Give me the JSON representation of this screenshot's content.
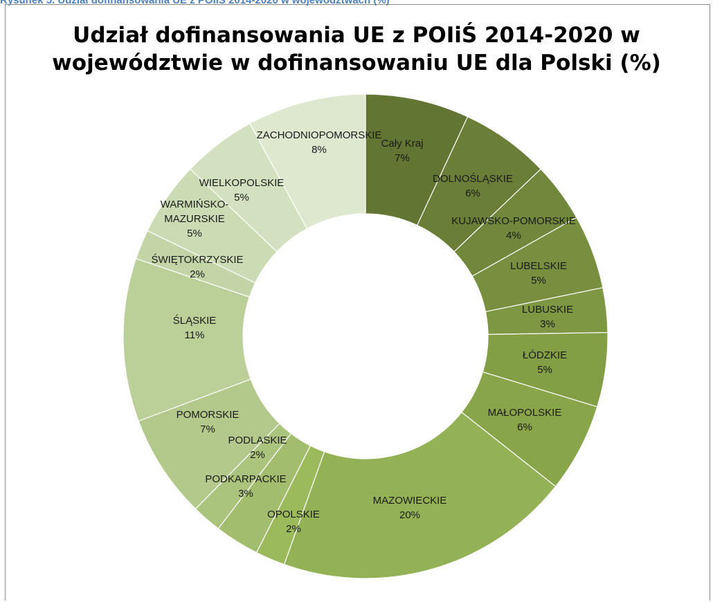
{
  "caption": "Rysunek 5. Udział dofinansowania UE z POIiŚ 2014-2020 w województwach (%)",
  "chart_data": {
    "type": "pie",
    "subtype": "donut",
    "title_line1": "Udział dofinansowania UE z POIiŚ 2014-2020 w",
    "title_line2": "województwie  w dofinansowaniu UE dla Polski (%)",
    "series": [
      {
        "label": "Cały Kraj",
        "value": 7,
        "color": "#637533"
      },
      {
        "label": "DOLNOŚLĄSKIE",
        "value": 6,
        "color": "#6a7e37"
      },
      {
        "label": "KUJAWSKO-POMORSKIE",
        "value": 4,
        "color": "#71873b"
      },
      {
        "label": "LUBELSKIE",
        "value": 5,
        "color": "#778f3f"
      },
      {
        "label": "LUBUSKIE",
        "value": 3,
        "color": "#7d9742"
      },
      {
        "label": "ŁÓDZKIE",
        "value": 5,
        "color": "#829f46"
      },
      {
        "label": "MAŁOPOLSKIE",
        "value": 6,
        "color": "#88a649"
      },
      {
        "label": "MAZOWIECKIE",
        "value": 20,
        "color": "#93b256"
      },
      {
        "label": "OPOLSKIE",
        "value": 2,
        "color": "#9bba5b"
      },
      {
        "label": "PODKARPACKIE",
        "value": 3,
        "color": "#a3bd6e"
      },
      {
        "label": "PODLASKIE",
        "value": 2,
        "color": "#abc47d"
      },
      {
        "label": "POMORSKIE",
        "value": 7,
        "color": "#b3c98b"
      },
      {
        "label": "ŚLĄSKIE",
        "value": 11,
        "color": "#bbcf99"
      },
      {
        "label": "ŚWIĘTOKRZYSKIE",
        "value": 2,
        "color": "#c3d5a6"
      },
      {
        "label": "WARMIŃSKO-MAZURSKIE",
        "value": 5,
        "color": "#cbdbb3"
      },
      {
        "label": "WIELKOPOLSKIE",
        "value": 5,
        "color": "#d3e1c0"
      },
      {
        "label": "ZACHODNIOPOMORSKIE",
        "value": 8,
        "color": "#dde8cf"
      }
    ],
    "percent_suffix": "%"
  }
}
